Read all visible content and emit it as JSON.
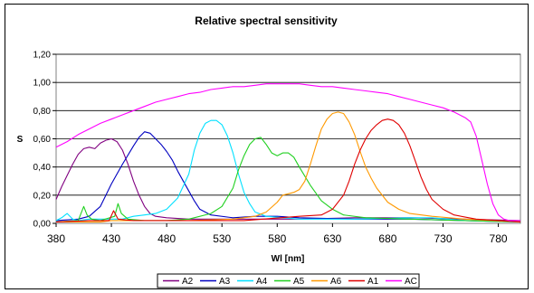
{
  "chart_data": {
    "type": "line",
    "title": "Relative spectral sensitivity",
    "xlabel": "Wl [nm]",
    "ylabel": "S",
    "xlim": [
      380,
      800
    ],
    "ylim": [
      0,
      1.2
    ],
    "x_ticks": [
      "380",
      "430",
      "480",
      "530",
      "580",
      "630",
      "680",
      "730",
      "780"
    ],
    "y_ticks": [
      "0,00",
      "0,20",
      "0,40",
      "0,60",
      "0,80",
      "1,00",
      "1,20"
    ],
    "grid": "horizontal",
    "legend_position": "bottom",
    "series": [
      {
        "name": "A2",
        "color": "#800080",
        "points": [
          [
            380,
            0.17
          ],
          [
            385,
            0.26
          ],
          [
            390,
            0.34
          ],
          [
            395,
            0.42
          ],
          [
            400,
            0.49
          ],
          [
            405,
            0.53
          ],
          [
            410,
            0.54
          ],
          [
            415,
            0.53
          ],
          [
            420,
            0.57
          ],
          [
            425,
            0.59
          ],
          [
            430,
            0.6
          ],
          [
            435,
            0.58
          ],
          [
            440,
            0.52
          ],
          [
            445,
            0.42
          ],
          [
            450,
            0.3
          ],
          [
            455,
            0.2
          ],
          [
            460,
            0.12
          ],
          [
            465,
            0.07
          ],
          [
            470,
            0.05
          ],
          [
            480,
            0.04
          ],
          [
            500,
            0.03
          ],
          [
            550,
            0.03
          ],
          [
            600,
            0.03
          ],
          [
            650,
            0.04
          ],
          [
            700,
            0.04
          ],
          [
            750,
            0.03
          ],
          [
            800,
            0.02
          ]
        ]
      },
      {
        "name": "A3",
        "color": "#0000c0",
        "points": [
          [
            380,
            0.02
          ],
          [
            400,
            0.03
          ],
          [
            410,
            0.05
          ],
          [
            420,
            0.12
          ],
          [
            430,
            0.28
          ],
          [
            440,
            0.42
          ],
          [
            450,
            0.55
          ],
          [
            455,
            0.61
          ],
          [
            460,
            0.65
          ],
          [
            465,
            0.64
          ],
          [
            470,
            0.6
          ],
          [
            475,
            0.56
          ],
          [
            480,
            0.51
          ],
          [
            485,
            0.45
          ],
          [
            490,
            0.37
          ],
          [
            495,
            0.3
          ],
          [
            500,
            0.23
          ],
          [
            505,
            0.16
          ],
          [
            510,
            0.1
          ],
          [
            520,
            0.06
          ],
          [
            540,
            0.04
          ],
          [
            560,
            0.05
          ],
          [
            580,
            0.05
          ],
          [
            600,
            0.04
          ],
          [
            650,
            0.03
          ],
          [
            700,
            0.03
          ],
          [
            750,
            0.02
          ],
          [
            800,
            0.01
          ]
        ]
      },
      {
        "name": "A4",
        "color": "#00e0ff",
        "points": [
          [
            380,
            0.02
          ],
          [
            385,
            0.04
          ],
          [
            390,
            0.07
          ],
          [
            395,
            0.03
          ],
          [
            400,
            0.02
          ],
          [
            410,
            0.03
          ],
          [
            420,
            0.03
          ],
          [
            440,
            0.03
          ],
          [
            450,
            0.05
          ],
          [
            460,
            0.06
          ],
          [
            470,
            0.07
          ],
          [
            480,
            0.1
          ],
          [
            490,
            0.18
          ],
          [
            500,
            0.35
          ],
          [
            505,
            0.52
          ],
          [
            510,
            0.64
          ],
          [
            515,
            0.71
          ],
          [
            520,
            0.73
          ],
          [
            525,
            0.73
          ],
          [
            530,
            0.7
          ],
          [
            535,
            0.62
          ],
          [
            540,
            0.5
          ],
          [
            545,
            0.35
          ],
          [
            550,
            0.22
          ],
          [
            555,
            0.14
          ],
          [
            560,
            0.08
          ],
          [
            570,
            0.05
          ],
          [
            600,
            0.03
          ],
          [
            650,
            0.03
          ],
          [
            700,
            0.04
          ],
          [
            720,
            0.04
          ],
          [
            750,
            0.02
          ],
          [
            800,
            0.01
          ]
        ]
      },
      {
        "name": "A5",
        "color": "#20d020",
        "points": [
          [
            380,
            0.01
          ],
          [
            400,
            0.02
          ],
          [
            405,
            0.12
          ],
          [
            408,
            0.06
          ],
          [
            412,
            0.03
          ],
          [
            420,
            0.02
          ],
          [
            433,
            0.05
          ],
          [
            436,
            0.14
          ],
          [
            439,
            0.07
          ],
          [
            445,
            0.03
          ],
          [
            460,
            0.02
          ],
          [
            480,
            0.02
          ],
          [
            500,
            0.03
          ],
          [
            520,
            0.07
          ],
          [
            530,
            0.12
          ],
          [
            540,
            0.25
          ],
          [
            545,
            0.38
          ],
          [
            550,
            0.48
          ],
          [
            555,
            0.56
          ],
          [
            560,
            0.6
          ],
          [
            565,
            0.61
          ],
          [
            570,
            0.56
          ],
          [
            575,
            0.5
          ],
          [
            580,
            0.48
          ],
          [
            585,
            0.5
          ],
          [
            590,
            0.5
          ],
          [
            595,
            0.47
          ],
          [
            600,
            0.4
          ],
          [
            610,
            0.27
          ],
          [
            620,
            0.16
          ],
          [
            630,
            0.1
          ],
          [
            640,
            0.06
          ],
          [
            660,
            0.04
          ],
          [
            700,
            0.03
          ],
          [
            750,
            0.02
          ],
          [
            800,
            0.01
          ]
        ]
      },
      {
        "name": "A6",
        "color": "#ff9900",
        "points": [
          [
            380,
            0.01
          ],
          [
            420,
            0.01
          ],
          [
            430,
            0.02
          ],
          [
            460,
            0.02
          ],
          [
            500,
            0.02
          ],
          [
            540,
            0.03
          ],
          [
            560,
            0.05
          ],
          [
            570,
            0.08
          ],
          [
            580,
            0.15
          ],
          [
            585,
            0.2
          ],
          [
            590,
            0.21
          ],
          [
            595,
            0.22
          ],
          [
            600,
            0.24
          ],
          [
            605,
            0.3
          ],
          [
            610,
            0.42
          ],
          [
            615,
            0.55
          ],
          [
            620,
            0.67
          ],
          [
            625,
            0.74
          ],
          [
            630,
            0.78
          ],
          [
            635,
            0.79
          ],
          [
            640,
            0.78
          ],
          [
            645,
            0.72
          ],
          [
            650,
            0.63
          ],
          [
            655,
            0.51
          ],
          [
            660,
            0.4
          ],
          [
            665,
            0.32
          ],
          [
            670,
            0.25
          ],
          [
            680,
            0.15
          ],
          [
            690,
            0.1
          ],
          [
            700,
            0.07
          ],
          [
            720,
            0.05
          ],
          [
            750,
            0.03
          ],
          [
            800,
            0.01
          ]
        ]
      },
      {
        "name": "A1",
        "color": "#e00000",
        "points": [
          [
            380,
            0.01
          ],
          [
            410,
            0.02
          ],
          [
            428,
            0.02
          ],
          [
            432,
            0.09
          ],
          [
            436,
            0.03
          ],
          [
            450,
            0.02
          ],
          [
            500,
            0.02
          ],
          [
            550,
            0.02
          ],
          [
            600,
            0.05
          ],
          [
            620,
            0.06
          ],
          [
            630,
            0.1
          ],
          [
            640,
            0.2
          ],
          [
            645,
            0.3
          ],
          [
            650,
            0.42
          ],
          [
            655,
            0.52
          ],
          [
            660,
            0.6
          ],
          [
            665,
            0.66
          ],
          [
            670,
            0.7
          ],
          [
            675,
            0.73
          ],
          [
            680,
            0.74
          ],
          [
            685,
            0.73
          ],
          [
            690,
            0.7
          ],
          [
            695,
            0.64
          ],
          [
            700,
            0.55
          ],
          [
            705,
            0.44
          ],
          [
            710,
            0.33
          ],
          [
            715,
            0.24
          ],
          [
            720,
            0.17
          ],
          [
            730,
            0.1
          ],
          [
            740,
            0.06
          ],
          [
            760,
            0.03
          ],
          [
            800,
            0.01
          ]
        ]
      },
      {
        "name": "AC",
        "color": "#ff00ff",
        "points": [
          [
            380,
            0.54
          ],
          [
            390,
            0.58
          ],
          [
            400,
            0.63
          ],
          [
            410,
            0.67
          ],
          [
            420,
            0.71
          ],
          [
            430,
            0.74
          ],
          [
            440,
            0.77
          ],
          [
            450,
            0.8
          ],
          [
            460,
            0.83
          ],
          [
            470,
            0.86
          ],
          [
            480,
            0.88
          ],
          [
            490,
            0.9
          ],
          [
            500,
            0.92
          ],
          [
            510,
            0.93
          ],
          [
            520,
            0.95
          ],
          [
            530,
            0.96
          ],
          [
            540,
            0.97
          ],
          [
            550,
            0.97
          ],
          [
            560,
            0.98
          ],
          [
            570,
            0.99
          ],
          [
            580,
            0.99
          ],
          [
            590,
            0.99
          ],
          [
            600,
            0.99
          ],
          [
            610,
            0.98
          ],
          [
            620,
            0.97
          ],
          [
            630,
            0.97
          ],
          [
            640,
            0.96
          ],
          [
            650,
            0.95
          ],
          [
            660,
            0.94
          ],
          [
            670,
            0.93
          ],
          [
            680,
            0.92
          ],
          [
            690,
            0.9
          ],
          [
            700,
            0.88
          ],
          [
            710,
            0.86
          ],
          [
            720,
            0.84
          ],
          [
            730,
            0.82
          ],
          [
            740,
            0.79
          ],
          [
            750,
            0.75
          ],
          [
            755,
            0.72
          ],
          [
            760,
            0.62
          ],
          [
            765,
            0.45
          ],
          [
            770,
            0.28
          ],
          [
            775,
            0.14
          ],
          [
            780,
            0.06
          ],
          [
            785,
            0.03
          ],
          [
            790,
            0.02
          ],
          [
            800,
            0.02
          ]
        ]
      }
    ]
  }
}
